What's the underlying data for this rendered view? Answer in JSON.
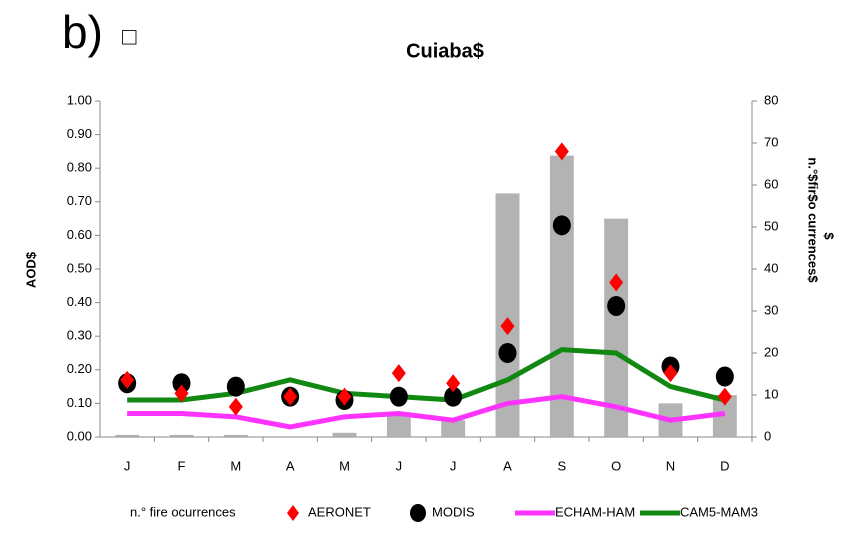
{
  "panel_label": "b)",
  "panel_glyph": "□",
  "chart_data": {
    "type": "combo",
    "title": "Cuiaba$",
    "ylabel": "AOD$",
    "y2label": [
      "n.°$fir$o currences$",
      "$"
    ],
    "categories": [
      "J",
      "F",
      "M",
      "A",
      "M",
      "J",
      "J",
      "A",
      "S",
      "O",
      "N",
      "D"
    ],
    "ylim": [
      0,
      1
    ],
    "yticks": [
      {
        "value": 0,
        "label": "0.00"
      },
      {
        "value": 0.1,
        "label": "0.10"
      },
      {
        "value": 0.2,
        "label": "0.20"
      },
      {
        "value": 0.3,
        "label": "0.30"
      },
      {
        "value": 0.4,
        "label": "0.40"
      },
      {
        "value": 0.5,
        "label": "0.50"
      },
      {
        "value": 0.6,
        "label": "0.60"
      },
      {
        "value": 0.7,
        "label": "0.70"
      },
      {
        "value": 0.8,
        "label": "0.80"
      },
      {
        "value": 0.9,
        "label": "0.90"
      },
      {
        "value": 1,
        "label": "1.00"
      }
    ],
    "y2lim": [
      0,
      80
    ],
    "y2ticks": [
      0,
      10,
      20,
      30,
      40,
      50,
      60,
      70,
      80
    ],
    "series": [
      {
        "name": "n.° fire ocurrences",
        "type": "bar",
        "axis": "y2",
        "color": "#a6a6a6",
        "values": [
          0.5,
          0.5,
          0.5,
          0,
          1,
          5,
          4,
          58,
          67,
          52,
          8,
          10
        ]
      },
      {
        "name": "AERONET",
        "type": "diamond",
        "color": "#ff0000",
        "values": [
          0.17,
          0.13,
          0.09,
          0.12,
          0.12,
          0.19,
          0.16,
          0.33,
          0.85,
          0.46,
          0.19,
          0.12
        ]
      },
      {
        "name": "MODIS",
        "type": "circle",
        "color": "#000000",
        "values": [
          0.16,
          0.16,
          0.15,
          0.12,
          0.11,
          0.12,
          0.12,
          0.25,
          0.63,
          0.39,
          0.21,
          0.18
        ]
      },
      {
        "name": "ECHAM-HAM",
        "type": "line",
        "color": "#ff33ff",
        "values": [
          0.07,
          0.07,
          0.06,
          0.03,
          0.06,
          0.07,
          0.05,
          0.1,
          0.12,
          0.09,
          0.05,
          0.07
        ]
      },
      {
        "name": "CAM5-MAM3",
        "type": "line",
        "color": "#118811",
        "values": [
          0.11,
          0.11,
          0.13,
          0.17,
          0.13,
          0.12,
          0.11,
          0.17,
          0.26,
          0.25,
          0.15,
          0.11
        ]
      }
    ]
  }
}
